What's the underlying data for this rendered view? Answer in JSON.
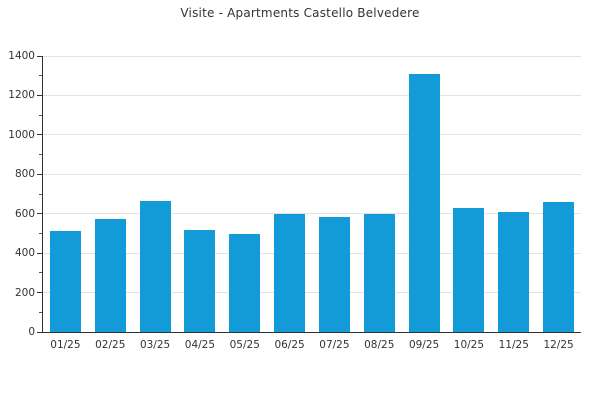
{
  "title": "Visite - Apartments Castello Belvedere",
  "colors": {
    "bar": "#129bd6",
    "grid": "#e2e2e2",
    "axis": "#333333",
    "text": "#333333",
    "background": "#ffffff"
  },
  "chart_data": {
    "type": "bar",
    "title": "Visite - Apartments Castello Belvedere",
    "categories": [
      "01/25",
      "02/25",
      "03/25",
      "04/25",
      "05/25",
      "06/25",
      "07/25",
      "08/25",
      "09/25",
      "10/25",
      "11/25",
      "12/25"
    ],
    "values": [
      510,
      575,
      665,
      515,
      495,
      600,
      585,
      600,
      1310,
      630,
      610,
      660
    ],
    "xlabel": "",
    "ylabel": "",
    "ylim": [
      0,
      1400
    ],
    "ytick_step": 200,
    "yminor_step": 100,
    "ytick_labels": [
      "0",
      "200",
      "400",
      "600",
      "800",
      "1000",
      "1200",
      "1400"
    ],
    "grid": true,
    "legend_position": "none",
    "bar_color": "#129bd6"
  }
}
